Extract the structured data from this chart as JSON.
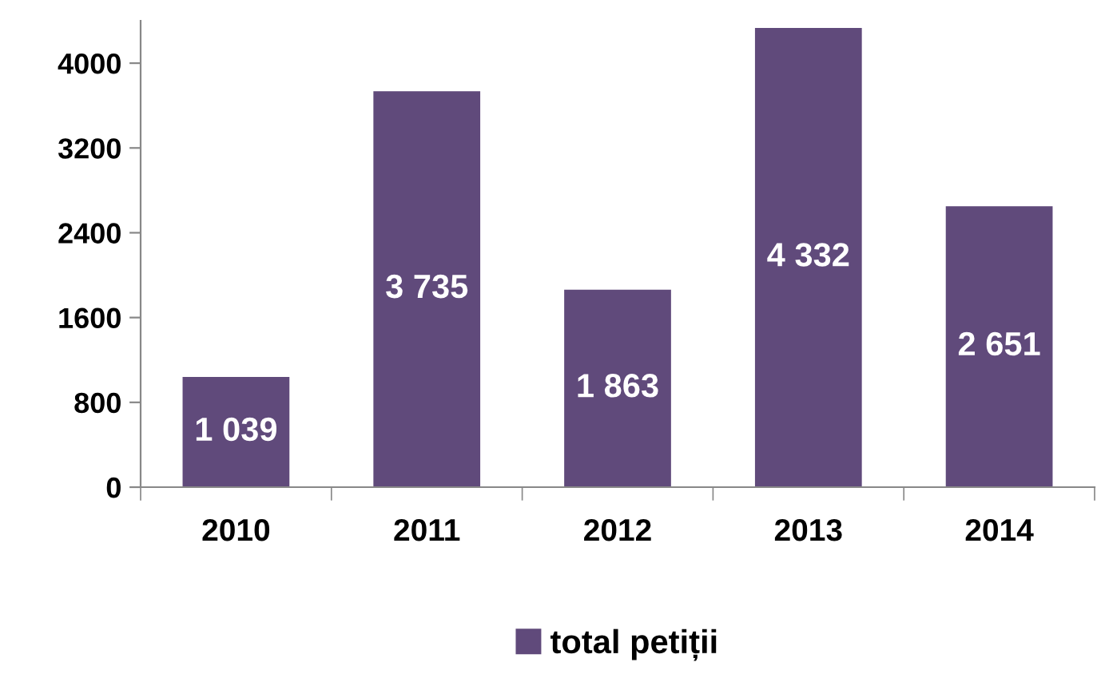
{
  "chart_data": {
    "type": "bar",
    "categories": [
      "2010",
      "2011",
      "2012",
      "2013",
      "2014"
    ],
    "series": [
      {
        "name": "total petiții",
        "color": "#604a7b",
        "values": [
          1039,
          3735,
          1863,
          4332,
          2651
        ],
        "value_labels": [
          "1 039",
          "3 735",
          "1 863",
          "4 332",
          "2 651"
        ]
      }
    ],
    "ylim": [
      0,
      4400
    ],
    "yticks": [
      0,
      800,
      1600,
      2400,
      3200,
      4000
    ],
    "grid": false,
    "legend": "bottom"
  }
}
